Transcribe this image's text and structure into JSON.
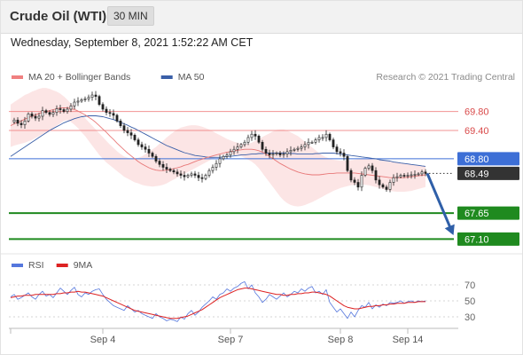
{
  "header": {
    "title": "Crude Oil (WTI)",
    "timeframe": "30 MIN"
  },
  "datetime": "Wednesday, September 8, 2021 1:52:22 AM CET",
  "copyright": "Research © 2021 Trading Central",
  "chart_data": [
    {
      "type": "line",
      "panel": "price",
      "legend": [
        {
          "name": "MA 20 + Bollinger Bands",
          "color": "#f08080"
        },
        {
          "name": "MA 50",
          "color": "#3a5fa8"
        }
      ],
      "ylim": [
        66.9,
        70.32
      ],
      "levels": [
        {
          "value": 69.8,
          "label": "69.80",
          "color": "#f08080",
          "style": "plain-label",
          "kind": "resistance"
        },
        {
          "value": 69.4,
          "label": "69.40",
          "color": "#f08080",
          "style": "plain-label",
          "kind": "resistance"
        },
        {
          "value": 68.8,
          "label": "68.80",
          "color": "#3d6fd6",
          "style": "box",
          "kind": "pivot"
        },
        {
          "value": 68.49,
          "label": "68.49",
          "color": "#333333",
          "style": "box",
          "kind": "last",
          "dotted": true
        },
        {
          "value": 67.65,
          "label": "67.65",
          "color": "#1f8a1f",
          "style": "box",
          "kind": "support"
        },
        {
          "value": 67.1,
          "label": "67.10",
          "color": "#1f8a1f",
          "style": "box",
          "kind": "support"
        }
      ],
      "close": [
        69.58,
        69.62,
        69.55,
        69.52,
        69.6,
        69.75,
        69.7,
        69.66,
        69.7,
        69.82,
        69.78,
        69.74,
        69.78,
        69.86,
        69.84,
        69.8,
        69.85,
        69.92,
        70.0,
        70.02,
        70.05,
        70.07,
        70.1,
        70.15,
        70.12,
        69.95,
        69.85,
        69.78,
        69.76,
        69.72,
        69.6,
        69.5,
        69.4,
        69.35,
        69.3,
        69.2,
        69.1,
        69.05,
        69.0,
        68.92,
        68.85,
        68.75,
        68.68,
        68.62,
        68.58,
        68.55,
        68.52,
        68.48,
        68.45,
        68.42,
        68.45,
        68.48,
        68.45,
        68.4,
        68.38,
        68.45,
        68.55,
        68.62,
        68.7,
        68.8,
        68.85,
        68.88,
        68.95,
        69.0,
        69.05,
        69.1,
        69.15,
        69.25,
        69.32,
        69.28,
        69.15,
        69.0,
        68.92,
        68.88,
        68.9,
        68.92,
        68.88,
        68.9,
        68.95,
        68.98,
        69.0,
        69.02,
        69.05,
        69.1,
        69.15,
        69.15,
        69.2,
        69.25,
        69.25,
        69.32,
        69.2,
        69.05,
        68.95,
        68.92,
        68.85,
        68.55,
        68.35,
        68.3,
        68.2,
        68.45,
        68.6,
        68.65,
        68.55,
        68.35,
        68.25,
        68.2,
        68.15,
        68.3,
        68.4,
        68.42,
        68.45,
        68.44,
        68.45,
        68.46,
        68.47,
        68.48,
        68.52,
        68.49
      ],
      "ma20": [
        69.5,
        69.54,
        69.57,
        69.6,
        69.64,
        69.67,
        69.7,
        69.73,
        69.76,
        69.78,
        69.8,
        69.82,
        69.84,
        69.86,
        69.88,
        69.88,
        69.88,
        69.86,
        69.84,
        69.81,
        69.77,
        69.73,
        69.68,
        69.63,
        69.57,
        69.5,
        69.43,
        69.36,
        69.28,
        69.21,
        69.13,
        69.06,
        68.99,
        68.92,
        68.86,
        68.8,
        68.74,
        68.69,
        68.65,
        68.61,
        68.58,
        68.56,
        68.55,
        68.55,
        68.56,
        68.57,
        68.59,
        68.61,
        68.63,
        68.66,
        68.68,
        68.71,
        68.74,
        68.77,
        68.79,
        68.82,
        68.84,
        68.86,
        68.88,
        68.9,
        68.92,
        68.94,
        68.95,
        68.97,
        68.98,
        68.99,
        69.0,
        69.0,
        69.0,
        68.99,
        68.97,
        68.94,
        68.9,
        68.85,
        68.8,
        68.75,
        68.7,
        68.66,
        68.62,
        68.58,
        68.55,
        68.52,
        68.5,
        68.48,
        68.47,
        68.46,
        68.46,
        68.46,
        68.47,
        68.48,
        68.49,
        68.49,
        68.5,
        68.5,
        68.5,
        68.5,
        68.5,
        68.5,
        68.49,
        68.48,
        68.47,
        68.46,
        68.45,
        68.44,
        68.43,
        68.42,
        68.41,
        68.4,
        68.4,
        68.4,
        68.4,
        68.4,
        68.41,
        68.42,
        68.43,
        68.44,
        68.45,
        68.46
      ],
      "bb_upper": [
        69.95,
        70.0,
        70.05,
        70.1,
        70.15,
        70.18,
        70.22,
        70.25,
        70.28,
        70.3,
        70.3,
        70.28,
        70.25,
        70.22,
        70.18,
        70.12,
        70.05,
        69.97,
        69.9,
        69.82,
        69.74,
        69.66,
        69.58,
        69.5,
        69.42,
        69.34,
        69.26,
        69.18,
        69.1,
        69.03,
        68.96,
        68.9,
        68.85,
        68.82,
        68.8,
        68.8,
        68.82,
        68.85,
        68.9,
        68.95,
        69.0,
        69.05,
        69.12,
        69.18,
        69.25,
        69.31,
        69.37,
        69.42,
        69.46,
        69.48,
        69.5,
        69.51,
        69.51,
        69.5,
        69.48,
        69.45,
        69.42,
        69.38,
        69.34,
        69.3,
        69.26,
        69.22,
        69.19,
        69.16,
        69.14,
        69.12,
        69.11,
        69.12,
        69.14,
        69.18,
        69.22,
        69.26,
        69.3,
        69.34,
        69.38,
        69.41,
        69.42,
        69.42,
        69.4,
        69.36,
        69.32,
        69.28,
        69.22,
        69.16,
        69.1,
        69.04,
        68.98,
        68.92,
        68.87,
        68.83,
        68.8,
        68.78,
        68.77,
        68.76,
        68.76,
        68.76,
        68.77,
        68.78,
        68.79,
        68.8,
        68.8,
        68.8,
        68.79,
        68.78,
        68.77,
        68.76,
        68.75,
        68.74,
        68.73,
        68.72,
        68.71,
        68.7,
        68.69,
        68.68,
        68.67,
        68.66,
        68.65,
        68.65
      ],
      "bb_lower": [
        69.05,
        69.08,
        69.1,
        69.12,
        69.14,
        69.17,
        69.2,
        69.24,
        69.28,
        69.32,
        69.36,
        69.4,
        69.45,
        69.5,
        69.55,
        69.6,
        69.62,
        69.58,
        69.52,
        69.45,
        69.36,
        69.28,
        69.18,
        69.08,
        68.98,
        68.88,
        68.8,
        68.72,
        68.66,
        68.6,
        68.54,
        68.48,
        68.42,
        68.38,
        68.34,
        68.3,
        68.28,
        68.25,
        68.23,
        68.22,
        68.21,
        68.22,
        68.23,
        68.25,
        68.28,
        68.32,
        68.36,
        68.4,
        68.44,
        68.48,
        68.52,
        68.56,
        68.6,
        68.64,
        68.68,
        68.72,
        68.76,
        68.8,
        68.83,
        68.86,
        68.88,
        68.9,
        68.9,
        68.89,
        68.87,
        68.85,
        68.82,
        68.78,
        68.74,
        68.68,
        68.6,
        68.5,
        68.4,
        68.3,
        68.2,
        68.1,
        68.0,
        67.92,
        67.86,
        67.82,
        67.8,
        67.79,
        67.8,
        67.82,
        67.85,
        67.88,
        67.92,
        67.96,
        68.0,
        68.04,
        68.08,
        68.12,
        68.15,
        68.18,
        68.2,
        68.22,
        68.24,
        68.25,
        68.26,
        68.26,
        68.25,
        68.24,
        68.22,
        68.2,
        68.18,
        68.16,
        68.14,
        68.12,
        68.11,
        68.1,
        68.1,
        68.1,
        68.11,
        68.12,
        68.14,
        68.16,
        68.18,
        68.2
      ],
      "ma50": [
        68.85,
        68.9,
        68.95,
        69.0,
        69.05,
        69.1,
        69.15,
        69.2,
        69.25,
        69.3,
        69.35,
        69.4,
        69.44,
        69.48,
        69.52,
        69.56,
        69.59,
        69.62,
        69.65,
        69.67,
        69.69,
        69.7,
        69.71,
        69.71,
        69.71,
        69.7,
        69.69,
        69.67,
        69.65,
        69.63,
        69.6,
        69.57,
        69.54,
        69.51,
        69.47,
        69.44,
        69.4,
        69.36,
        69.32,
        69.28,
        69.24,
        69.2,
        69.16,
        69.12,
        69.08,
        69.05,
        69.02,
        68.99,
        68.96,
        68.93,
        68.91,
        68.89,
        68.87,
        68.86,
        68.85,
        68.84,
        68.83,
        68.83,
        68.83,
        68.83,
        68.84,
        68.85,
        68.85,
        68.86,
        68.87,
        68.88,
        68.88,
        68.89,
        68.9,
        68.9,
        68.91,
        68.91,
        68.92,
        68.92,
        68.92,
        68.92,
        68.92,
        68.92,
        68.92,
        68.91,
        68.91,
        68.9,
        68.9,
        68.9,
        68.9,
        68.9,
        68.91,
        68.91,
        68.92,
        68.92,
        68.92,
        68.92,
        68.91,
        68.9,
        68.89,
        68.88,
        68.87,
        68.86,
        68.85,
        68.84,
        68.83,
        68.82,
        68.81,
        68.8,
        68.78,
        68.77,
        68.76,
        68.75,
        68.73,
        68.72,
        68.71,
        68.7,
        68.69,
        68.68,
        68.67,
        68.66,
        68.65,
        68.64
      ],
      "forecast": {
        "from": 68.49,
        "to": 67.1
      }
    },
    {
      "type": "line",
      "panel": "rsi",
      "legend": [
        {
          "name": "RSI",
          "color": "#5577dd"
        },
        {
          "name": "9MA",
          "color": "#dd2222"
        }
      ],
      "ylim": [
        20,
        80
      ],
      "ticks": [
        70,
        50,
        30
      ],
      "x_ticks": [
        {
          "label": "Sep 4",
          "index": 26
        },
        {
          "label": "Sep 7",
          "index": 62
        },
        {
          "label": "Sep 8",
          "index": 93
        },
        {
          "label": "Sep 14",
          "index": 112
        }
      ],
      "rsi": [
        55,
        58,
        52,
        54,
        57,
        60,
        55,
        52,
        58,
        62,
        56,
        58,
        54,
        60,
        66,
        62,
        58,
        63,
        67,
        58,
        55,
        60,
        58,
        62,
        64,
        65,
        58,
        52,
        48,
        44,
        42,
        40,
        38,
        44,
        40,
        36,
        38,
        34,
        32,
        30,
        28,
        34,
        30,
        28,
        25,
        27,
        26,
        24,
        30,
        27,
        34,
        38,
        32,
        36,
        42,
        46,
        50,
        55,
        52,
        58,
        60,
        65,
        62,
        66,
        68,
        72,
        74,
        65,
        70,
        60,
        55,
        48,
        52,
        58,
        55,
        52,
        56,
        60,
        55,
        58,
        62,
        60,
        65,
        62,
        66,
        68,
        60,
        62,
        58,
        64,
        48,
        42,
        36,
        40,
        34,
        28,
        36,
        30,
        38,
        44,
        42,
        48,
        40,
        45,
        42,
        46,
        44,
        48,
        47,
        48,
        50,
        47,
        49,
        50,
        48,
        50,
        49,
        50
      ],
      "ma9": [
        54,
        55,
        56,
        56,
        57,
        57,
        57,
        58,
        58,
        58,
        58,
        58,
        58,
        59,
        59,
        60,
        60,
        61,
        61,
        62,
        61,
        61,
        60,
        59,
        58,
        57,
        56,
        54,
        52,
        50,
        48,
        46,
        44,
        42,
        40,
        38,
        37,
        36,
        35,
        34,
        33,
        32,
        31,
        30,
        29,
        28,
        28,
        28,
        29,
        30,
        31,
        33,
        35,
        37,
        39,
        42,
        45,
        48,
        51,
        54,
        56,
        58,
        60,
        62,
        64,
        65,
        66,
        66,
        65,
        64,
        63,
        62,
        61,
        60,
        59,
        58,
        58,
        57,
        57,
        58,
        58,
        59,
        59,
        60,
        60,
        61,
        61,
        60,
        59,
        58,
        56,
        53,
        50,
        47,
        44,
        42,
        41,
        40,
        40,
        41,
        42,
        43,
        43,
        44,
        44,
        45,
        45,
        46,
        46,
        47,
        47,
        47,
        48,
        48,
        48,
        49,
        49,
        49
      ]
    }
  ]
}
